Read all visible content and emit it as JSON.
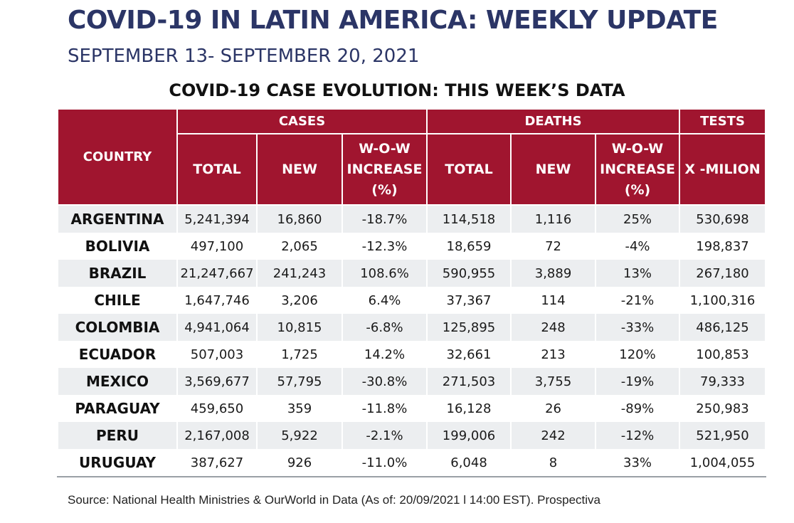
{
  "header": {
    "title": "COVID-19 IN LATIN AMERICA: WEEKLY UPDATE",
    "subtitle": "SEPTEMBER 13- SEPTEMBER 20, 2021",
    "table_title": "COVID-19 CASE EVOLUTION: THIS WEEK’S DATA"
  },
  "table": {
    "group_headers": {
      "country": "COUNTRY",
      "cases": "CASES",
      "deaths": "DEATHS",
      "tests": "TESTS"
    },
    "sub_headers": {
      "cases_total": "TOTAL",
      "cases_new": "NEW",
      "cases_wow_line1": "W-O-W",
      "cases_wow_line2": "INCREASE",
      "cases_wow_line3": "(%)",
      "deaths_total": "TOTAL",
      "deaths_new": "NEW",
      "deaths_wow_line1": "W-O-W",
      "deaths_wow_line2": "INCREASE",
      "deaths_wow_line3": "(%)",
      "tests_per_million": "X -MILION"
    },
    "rows": [
      {
        "country": "ARGENTINA",
        "cases_total": "5,241,394",
        "cases_new": "16,860",
        "cases_wow": "-18.7%",
        "deaths_total": "114,518",
        "deaths_new": "1,116",
        "deaths_wow": "25%",
        "tests": "530,698"
      },
      {
        "country": "BOLIVIA",
        "cases_total": "497,100",
        "cases_new": "2,065",
        "cases_wow": "-12.3%",
        "deaths_total": "18,659",
        "deaths_new": "72",
        "deaths_wow": "-4%",
        "tests": "198,837"
      },
      {
        "country": "BRAZIL",
        "cases_total": "21,247,667",
        "cases_new": "241,243",
        "cases_wow": "108.6%",
        "deaths_total": "590,955",
        "deaths_new": "3,889",
        "deaths_wow": "13%",
        "tests": "267,180"
      },
      {
        "country": "CHILE",
        "cases_total": "1,647,746",
        "cases_new": "3,206",
        "cases_wow": "6.4%",
        "deaths_total": "37,367",
        "deaths_new": "114",
        "deaths_wow": "-21%",
        "tests": "1,100,316"
      },
      {
        "country": "COLOMBIA",
        "cases_total": "4,941,064",
        "cases_new": "10,815",
        "cases_wow": "-6.8%",
        "deaths_total": "125,895",
        "deaths_new": "248",
        "deaths_wow": "-33%",
        "tests": "486,125"
      },
      {
        "country": "ECUADOR",
        "cases_total": "507,003",
        "cases_new": "1,725",
        "cases_wow": "14.2%",
        "deaths_total": "32,661",
        "deaths_new": "213",
        "deaths_wow": "120%",
        "tests": "100,853"
      },
      {
        "country": "MEXICO",
        "cases_total": "3,569,677",
        "cases_new": "57,795",
        "cases_wow": "-30.8%",
        "deaths_total": "271,503",
        "deaths_new": "3,755",
        "deaths_wow": "-19%",
        "tests": "79,333"
      },
      {
        "country": "PARAGUAY",
        "cases_total": "459,650",
        "cases_new": "359",
        "cases_wow": "-11.8%",
        "deaths_total": "16,128",
        "deaths_new": "26",
        "deaths_wow": "-89%",
        "tests": "250,983"
      },
      {
        "country": "PERU",
        "cases_total": "2,167,008",
        "cases_new": "5,922",
        "cases_wow": "-2.1%",
        "deaths_total": "199,006",
        "deaths_new": "242",
        "deaths_wow": "-12%",
        "tests": "521,950"
      },
      {
        "country": "URUGUAY",
        "cases_total": "387,627",
        "cases_new": "926",
        "cases_wow": "-11.0%",
        "deaths_total": "6,048",
        "deaths_new": "8",
        "deaths_wow": "33%",
        "tests": "1,004,055"
      }
    ]
  },
  "footer": {
    "source": "Source: National Health Ministries & OurWorld in Data (As of: 20/09/2021 l 14:00 EST). Prospectiva"
  }
}
